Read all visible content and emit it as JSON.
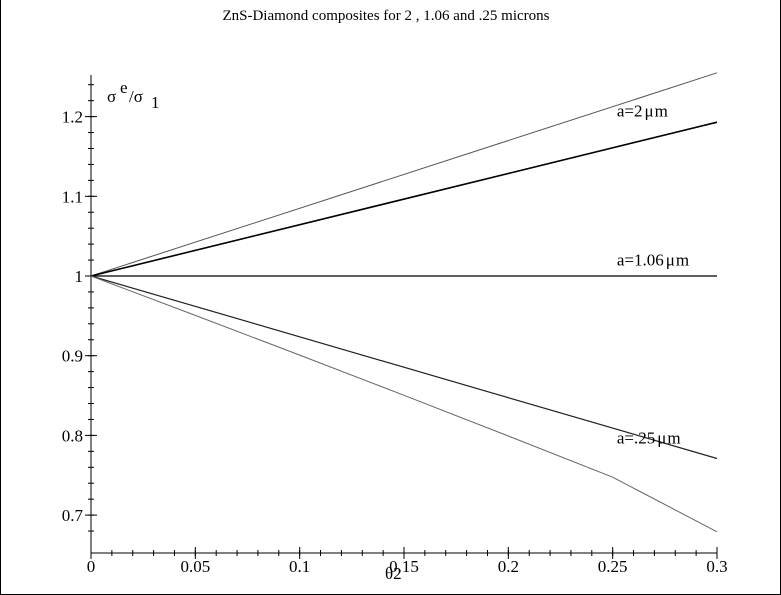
{
  "chart_data": {
    "type": "line",
    "title": "ZnS-Diamond composites for 2 , 1.06 and .25 microns",
    "xlabel": "θ2",
    "ylabel": {
      "base": "σ",
      "sup": "e",
      "rest": "/σ",
      "sub": "1"
    },
    "xlim": [
      0,
      0.3
    ],
    "ylim": [
      0.67,
      1.27
    ],
    "xticks": [
      0,
      0.05,
      0.1,
      0.15,
      0.2,
      0.25,
      0.3
    ],
    "xtick_labels": [
      "0",
      "0.05",
      "0.1",
      "0.15",
      "0.2",
      "0.25",
      "0.3"
    ],
    "yticks": [
      0.7,
      0.8,
      0.9,
      1.0,
      1.1,
      1.2
    ],
    "ytick_labels": [
      "0.7",
      "0.8",
      "0.9",
      "1",
      "1.1",
      "1.2"
    ],
    "grid": false,
    "legend": "none",
    "series": [
      {
        "x": [
          0,
          0.3
        ],
        "values": [
          1,
          1.255
        ],
        "color": "#555555",
        "width": 1
      },
      {
        "x": [
          0,
          0.3
        ],
        "values": [
          1,
          1.193
        ],
        "color": "#000000",
        "width": 1.6
      },
      {
        "x": [
          0,
          0.3
        ],
        "values": [
          1,
          1.0
        ],
        "color": "#000000",
        "width": 1.2
      },
      {
        "x": [
          0,
          0.3
        ],
        "values": [
          1,
          0.771
        ],
        "color": "#222222",
        "width": 1.2
      },
      {
        "x": [
          0,
          0.05,
          0.1,
          0.15,
          0.2,
          0.25,
          0.3
        ],
        "values": [
          1,
          0.9506,
          0.9007,
          0.8503,
          0.7993,
          0.7476,
          0.679
        ],
        "color": "#666666",
        "width": 1
      }
    ],
    "annotations": [
      {
        "text": "a=2",
        "mu": "μ",
        "unit": "m",
        "x": 0.252,
        "y": 1.2
      },
      {
        "text": "a=1.06",
        "mu": "μ",
        "unit": "m",
        "x": 0.252,
        "y": 1.013
      },
      {
        "text": "a=.25",
        "mu": "μ",
        "unit": "m",
        "x": 0.252,
        "y": 0.79
      }
    ]
  }
}
